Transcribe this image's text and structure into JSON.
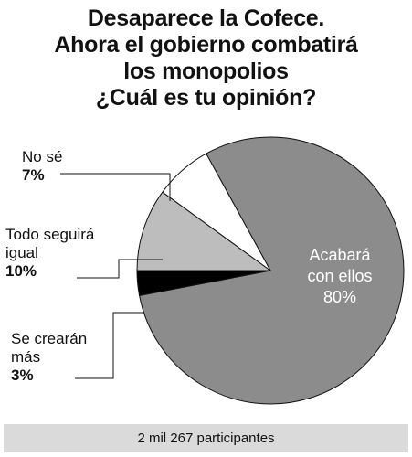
{
  "title_lines": [
    "Desaparece la Cofece.",
    "Ahora el gobierno combatirá",
    "los monopolios",
    "¿Cuál es tu opinión?"
  ],
  "chart_data": {
    "type": "pie",
    "title": "Desaparece la Cofece. Ahora el gobierno combatirá los monopolios ¿Cuál es tu opinión?",
    "slices": [
      {
        "name": "Acabará con ellos",
        "value": 80,
        "label": "80%",
        "color": "#8c8c8c"
      },
      {
        "name": "Se crearán más",
        "value": 3,
        "label": "3%",
        "color": "#000000"
      },
      {
        "name": "Todo seguirá igual",
        "value": 10,
        "label": "10%",
        "color": "#bdbdbd"
      },
      {
        "name": "No sé",
        "value": 7,
        "label": "7%",
        "color": "#ffffff"
      }
    ]
  },
  "labels": {
    "nose_name": "No sé",
    "nose_pct": "7%",
    "todo_name_1": "Todo seguirá",
    "todo_name_2": "igual",
    "todo_pct": "10%",
    "se_name_1": "Se crearán",
    "se_name_2": "más",
    "se_pct": "3%",
    "acabara_1": "Acabará",
    "acabara_2": "con ellos",
    "acabara_pct": "80%"
  },
  "footer": "2 mil 267 participantes"
}
